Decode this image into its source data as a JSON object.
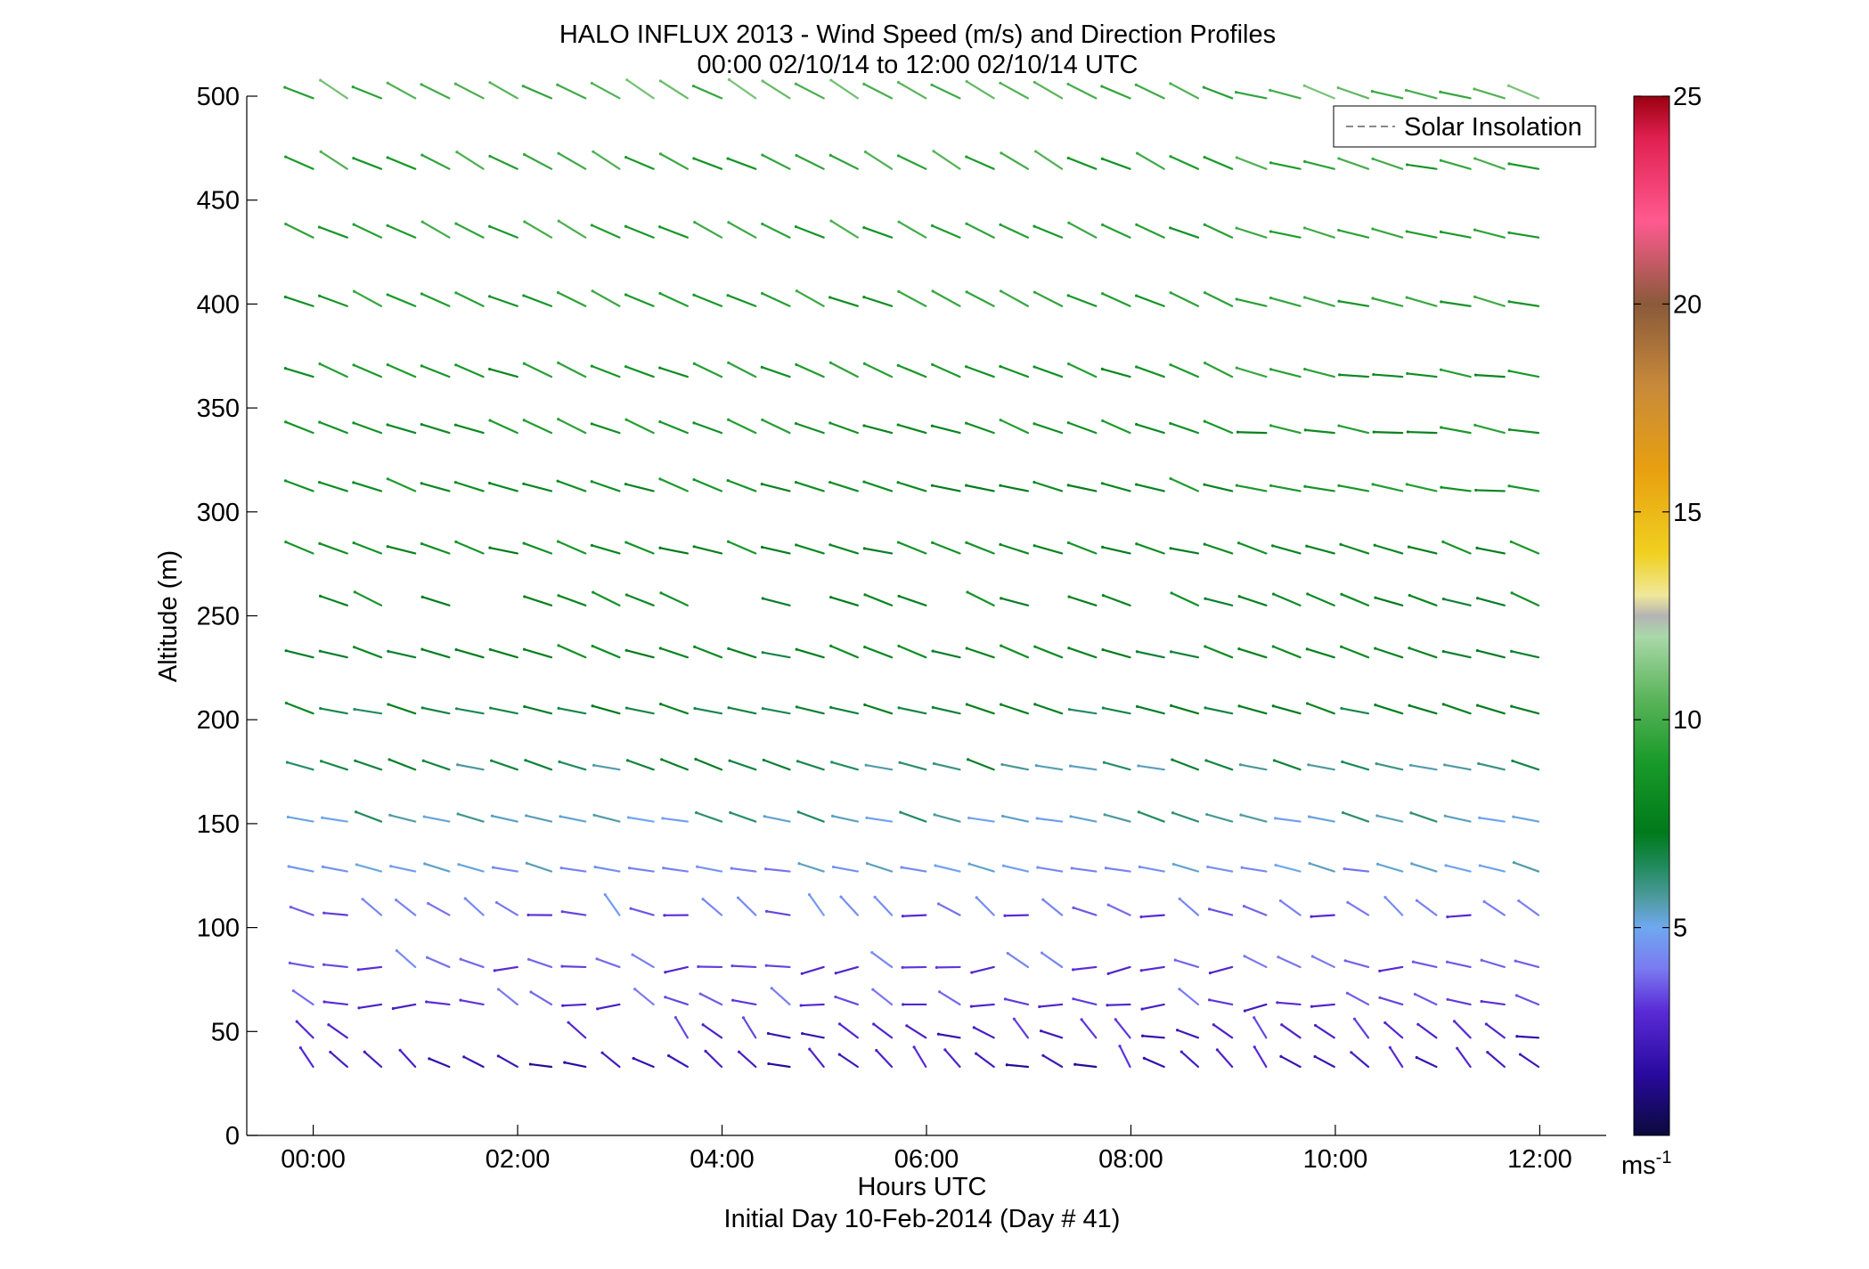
{
  "header": {
    "title_line1": "HALO INFLUX 2013 - Wind Speed (m/s) and Direction Profiles",
    "title_line2": "00:00 02/10/14 to 12:00 02/10/14  UTC"
  },
  "axes": {
    "xlabel": "Hours UTC",
    "xlabel2": "Initial Day 10-Feb-2014 (Day # 41)",
    "ylabel": "Altitude (m)"
  },
  "legend": {
    "label": "Solar Insolation",
    "placement": "top-right"
  },
  "colorbar": {
    "unit_base": "ms",
    "unit_exp": "-1",
    "range": [
      0,
      25
    ],
    "tick_labels": [
      "5",
      "10",
      "15",
      "20",
      "25"
    ],
    "tick_values": [
      5,
      10,
      15,
      20,
      25
    ],
    "colormap": [
      {
        "v": 0,
        "c": "#0a0a3c"
      },
      {
        "v": 1.5,
        "c": "#2a0aa0"
      },
      {
        "v": 3,
        "c": "#5a2bd6"
      },
      {
        "v": 4,
        "c": "#7a7af0"
      },
      {
        "v": 5,
        "c": "#6fa8f0"
      },
      {
        "v": 5.7,
        "c": "#4f9aa0"
      },
      {
        "v": 6.5,
        "c": "#1f8a5a"
      },
      {
        "v": 7.3,
        "c": "#007a1a"
      },
      {
        "v": 9,
        "c": "#1a9a2a"
      },
      {
        "v": 10.5,
        "c": "#5ab45a"
      },
      {
        "v": 12,
        "c": "#a9d8a9"
      },
      {
        "v": 12.5,
        "c": "#b4b4b4"
      },
      {
        "v": 13,
        "c": "#f0e89a"
      },
      {
        "v": 14,
        "c": "#f0d020"
      },
      {
        "v": 16,
        "c": "#e8a010"
      },
      {
        "v": 18,
        "c": "#c88a3a"
      },
      {
        "v": 20,
        "c": "#8a5a3a"
      },
      {
        "v": 22,
        "c": "#ff5a90"
      },
      {
        "v": 24,
        "c": "#e02050"
      },
      {
        "v": 25,
        "c": "#9a0010"
      }
    ]
  },
  "chart_data": {
    "type": "quiver",
    "title": "HALO INFLUX 2013 - Wind Speed (m/s) and Direction Profiles",
    "subtitle": "00:00 02/10/14 to 12:00 02/10/14  UTC",
    "xlabel": "Hours UTC",
    "ylabel": "Altitude (m)",
    "xlim": [
      -0.65,
      12.65
    ],
    "ylim": [
      0,
      500
    ],
    "x_ticks": [
      0,
      2,
      4,
      6,
      8,
      10,
      12
    ],
    "x_tick_labels": [
      "00:00",
      "02:00",
      "04:00",
      "06:00",
      "08:00",
      "10:00",
      "12:00"
    ],
    "y_ticks": [
      0,
      50,
      100,
      150,
      200,
      250,
      300,
      350,
      400,
      450,
      500
    ],
    "y_tick_labels": [
      "0",
      "50",
      "100",
      "150",
      "200",
      "250",
      "300",
      "350",
      "400",
      "450",
      "500"
    ],
    "grid": false,
    "time_step_hours": 0.333,
    "levels": [
      {
        "alt": 499,
        "dir": 298,
        "speed": 10.2
      },
      {
        "alt": 465,
        "dir": 297,
        "speed": 9.5
      },
      {
        "alt": 432,
        "dir": 295,
        "speed": 9.3
      },
      {
        "alt": 399,
        "dir": 293,
        "speed": 9.0
      },
      {
        "alt": 365,
        "dir": 292,
        "speed": 8.8
      },
      {
        "alt": 338,
        "dir": 290,
        "speed": 8.5
      },
      {
        "alt": 310,
        "dir": 288,
        "speed": 8.3
      },
      {
        "alt": 280,
        "dir": 287,
        "speed": 8.0
      },
      {
        "alt": 255,
        "dir": 290,
        "speed": 7.8
      },
      {
        "alt": 230,
        "dir": 287,
        "speed": 7.6
      },
      {
        "alt": 203,
        "dir": 285,
        "speed": 7.2
      },
      {
        "alt": 176,
        "dir": 285,
        "speed": 6.3
      },
      {
        "alt": 151,
        "dir": 284,
        "speed": 5.6
      },
      {
        "alt": 127,
        "dir": 283,
        "speed": 4.8
      },
      {
        "alt": 106,
        "dir": 295,
        "speed": 3.8
      },
      {
        "alt": 81,
        "dir": 283,
        "speed": 3.6
      },
      {
        "alt": 63,
        "dir": 283,
        "speed": 3.2
      },
      {
        "alt": 47,
        "dir": 300,
        "speed": 2.5
      },
      {
        "alt": 33,
        "dir": 305,
        "speed": 2.2
      }
    ],
    "missing": [
      {
        "alt": 255,
        "times": [
          0,
          1.0,
          1.67,
          2.0,
          4.0,
          4.33,
          4.67,
          5.0,
          6.0,
          6.33,
          6.67,
          7.0,
          7.33,
          7.67,
          8.0,
          8.33,
          9.67,
          10.0,
          10.33,
          10.67,
          11.0,
          11.33,
          11.67,
          12.0
        ]
      },
      {
        "alt": 465,
        "times": [
          12.0
        ]
      },
      {
        "alt": 47,
        "times": [
          0.67,
          1.0,
          1.33,
          1.67,
          2.0,
          2.33,
          2.67,
          3.0,
          3.33
        ]
      }
    ],
    "colorbar": {
      "label": "ms-1",
      "range": [
        0,
        25
      ],
      "ticks": [
        5,
        10,
        15,
        20,
        25
      ]
    }
  }
}
